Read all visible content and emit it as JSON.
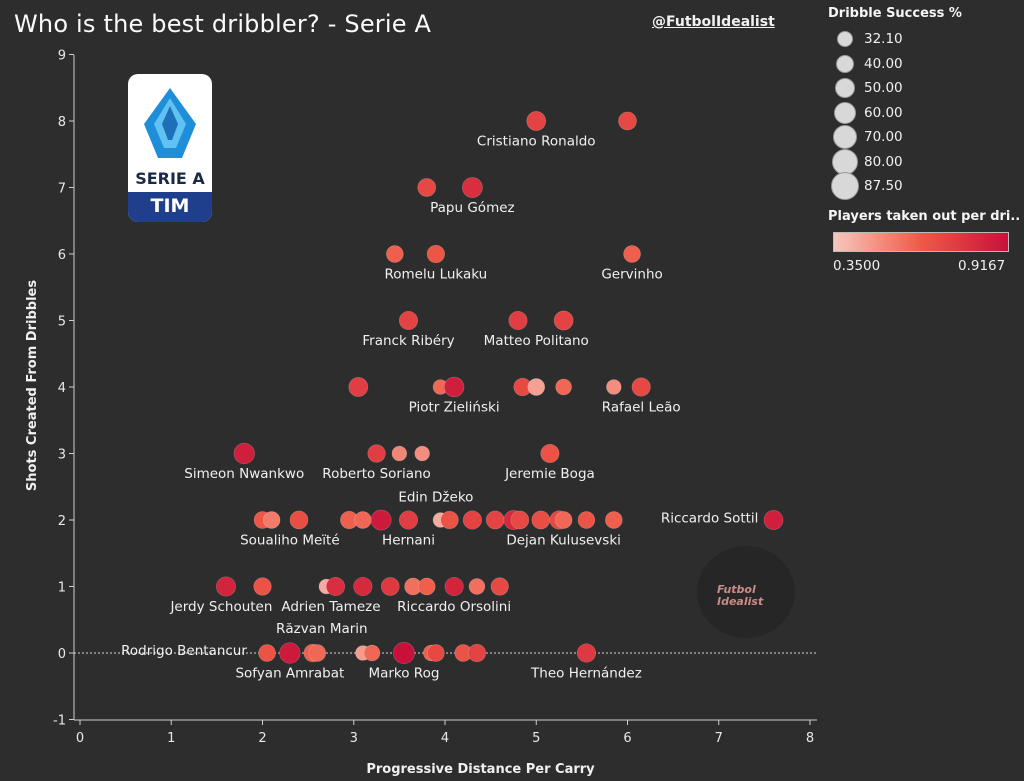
{
  "title": "Who is the best dribbler? - Serie A",
  "handle": "@FutbolIdealist",
  "logo": {
    "line1": "SERIE A",
    "line2": "TIM"
  },
  "watermark": {
    "text": "Futbol Idealist"
  },
  "legend_size": {
    "title": "Dribble Success %",
    "values": [
      "32.10",
      "40.00",
      "50.00",
      "60.00",
      "70.00",
      "80.00",
      "87.50"
    ]
  },
  "legend_color": {
    "title": "Players taken out per dri..",
    "min_label": "0.3500",
    "max_label": "0.9167",
    "min": 0.35,
    "max": 0.9167,
    "colors": [
      "#f7c7bd",
      "#ef5a47",
      "#c8103a"
    ]
  },
  "chart_data": {
    "type": "scatter",
    "title": "Who is the best dribbler? - Serie A",
    "xlabel": "Progressive Distance Per Carry",
    "ylabel": "Shots Created From Dribbles",
    "xlim": [
      0,
      8
    ],
    "ylim": [
      -1,
      9
    ],
    "xticks": [
      "0",
      "1",
      "2",
      "3",
      "4",
      "5",
      "6",
      "7",
      "8"
    ],
    "yticks": [
      "-1",
      "0",
      "1",
      "2",
      "3",
      "4",
      "5",
      "6",
      "7",
      "8",
      "9"
    ],
    "reference_line_y": 0,
    "points": [
      {
        "x": 5.0,
        "y": 8,
        "c": 0.72,
        "s": 65
      },
      {
        "x": 6.0,
        "y": 8,
        "c": 0.7,
        "s": 60
      },
      {
        "x": 3.8,
        "y": 7,
        "c": 0.7,
        "s": 60
      },
      {
        "x": 4.3,
        "y": 7,
        "c": 0.8,
        "s": 70
      },
      {
        "x": 3.45,
        "y": 6,
        "c": 0.62,
        "s": 55
      },
      {
        "x": 3.9,
        "y": 6,
        "c": 0.65,
        "s": 58
      },
      {
        "x": 6.05,
        "y": 6,
        "c": 0.62,
        "s": 55
      },
      {
        "x": 3.6,
        "y": 5,
        "c": 0.72,
        "s": 62
      },
      {
        "x": 4.8,
        "y": 5,
        "c": 0.74,
        "s": 62
      },
      {
        "x": 5.3,
        "y": 5,
        "c": 0.72,
        "s": 65
      },
      {
        "x": 3.05,
        "y": 4,
        "c": 0.74,
        "s": 65
      },
      {
        "x": 3.95,
        "y": 4,
        "c": 0.6,
        "s": 45
      },
      {
        "x": 4.1,
        "y": 4,
        "c": 0.86,
        "s": 68
      },
      {
        "x": 4.85,
        "y": 4,
        "c": 0.7,
        "s": 58
      },
      {
        "x": 5.0,
        "y": 4,
        "c": 0.45,
        "s": 55
      },
      {
        "x": 5.3,
        "y": 4,
        "c": 0.6,
        "s": 50
      },
      {
        "x": 5.85,
        "y": 4,
        "c": 0.5,
        "s": 45
      },
      {
        "x": 6.15,
        "y": 4,
        "c": 0.7,
        "s": 62
      },
      {
        "x": 1.8,
        "y": 3,
        "c": 0.86,
        "s": 72
      },
      {
        "x": 3.25,
        "y": 3,
        "c": 0.74,
        "s": 58
      },
      {
        "x": 3.5,
        "y": 3,
        "c": 0.52,
        "s": 45
      },
      {
        "x": 3.75,
        "y": 3,
        "c": 0.5,
        "s": 45
      },
      {
        "x": 5.15,
        "y": 3,
        "c": 0.66,
        "s": 62
      },
      {
        "x": 2.0,
        "y": 2,
        "c": 0.65,
        "s": 55
      },
      {
        "x": 2.1,
        "y": 2,
        "c": 0.55,
        "s": 55
      },
      {
        "x": 2.4,
        "y": 2,
        "c": 0.68,
        "s": 60
      },
      {
        "x": 2.95,
        "y": 2,
        "c": 0.62,
        "s": 58
      },
      {
        "x": 3.1,
        "y": 2,
        "c": 0.6,
        "s": 55
      },
      {
        "x": 3.3,
        "y": 2,
        "c": 0.88,
        "s": 70
      },
      {
        "x": 3.6,
        "y": 2,
        "c": 0.74,
        "s": 62
      },
      {
        "x": 3.95,
        "y": 2,
        "c": 0.42,
        "s": 45
      },
      {
        "x": 4.05,
        "y": 2,
        "c": 0.66,
        "s": 58
      },
      {
        "x": 4.3,
        "y": 2,
        "c": 0.72,
        "s": 62
      },
      {
        "x": 4.55,
        "y": 2,
        "c": 0.72,
        "s": 60
      },
      {
        "x": 4.75,
        "y": 2,
        "c": 0.82,
        "s": 65
      },
      {
        "x": 4.82,
        "y": 2,
        "c": 0.7,
        "s": 60
      },
      {
        "x": 5.05,
        "y": 2,
        "c": 0.68,
        "s": 60
      },
      {
        "x": 5.25,
        "y": 2,
        "c": 0.7,
        "s": 62
      },
      {
        "x": 5.3,
        "y": 2,
        "c": 0.6,
        "s": 55
      },
      {
        "x": 5.55,
        "y": 2,
        "c": 0.66,
        "s": 55
      },
      {
        "x": 5.85,
        "y": 2,
        "c": 0.62,
        "s": 55
      },
      {
        "x": 7.6,
        "y": 2,
        "c": 0.86,
        "s": 65
      },
      {
        "x": 1.6,
        "y": 1,
        "c": 0.84,
        "s": 66
      },
      {
        "x": 2.0,
        "y": 1,
        "c": 0.66,
        "s": 58
      },
      {
        "x": 2.7,
        "y": 1,
        "c": 0.42,
        "s": 45
      },
      {
        "x": 2.8,
        "y": 1,
        "c": 0.8,
        "s": 62
      },
      {
        "x": 3.1,
        "y": 1,
        "c": 0.82,
        "s": 62
      },
      {
        "x": 3.4,
        "y": 1,
        "c": 0.76,
        "s": 60
      },
      {
        "x": 3.65,
        "y": 1,
        "c": 0.58,
        "s": 55
      },
      {
        "x": 3.8,
        "y": 1,
        "c": 0.62,
        "s": 55
      },
      {
        "x": 4.1,
        "y": 1,
        "c": 0.84,
        "s": 62
      },
      {
        "x": 4.35,
        "y": 1,
        "c": 0.58,
        "s": 50
      },
      {
        "x": 4.6,
        "y": 1,
        "c": 0.7,
        "s": 58
      },
      {
        "x": 2.05,
        "y": 0,
        "c": 0.66,
        "s": 55
      },
      {
        "x": 2.3,
        "y": 0,
        "c": 0.88,
        "s": 72
      },
      {
        "x": 2.55,
        "y": 0,
        "c": 0.62,
        "s": 58
      },
      {
        "x": 2.6,
        "y": 0,
        "c": 0.6,
        "s": 55
      },
      {
        "x": 3.1,
        "y": 0,
        "c": 0.46,
        "s": 45
      },
      {
        "x": 3.2,
        "y": 0,
        "c": 0.6,
        "s": 50
      },
      {
        "x": 3.55,
        "y": 0,
        "c": 0.92,
        "s": 75
      },
      {
        "x": 3.85,
        "y": 0,
        "c": 0.62,
        "s": 50
      },
      {
        "x": 3.9,
        "y": 0,
        "c": 0.7,
        "s": 55
      },
      {
        "x": 4.2,
        "y": 0,
        "c": 0.66,
        "s": 55
      },
      {
        "x": 4.35,
        "y": 0,
        "c": 0.72,
        "s": 58
      },
      {
        "x": 5.55,
        "y": 0,
        "c": 0.76,
        "s": 62
      }
    ],
    "labels": [
      {
        "text": "Cristiano Ronaldo",
        "x": 5.0,
        "y": 7.63
      },
      {
        "text": "Papu Gómez",
        "x": 4.3,
        "y": 6.63
      },
      {
        "text": "Romelu Lukaku",
        "x": 3.9,
        "y": 5.63
      },
      {
        "text": "Gervinho",
        "x": 6.05,
        "y": 5.63
      },
      {
        "text": "Franck Ribéry",
        "x": 3.6,
        "y": 4.63
      },
      {
        "text": "Matteo Politano",
        "x": 5.0,
        "y": 4.63
      },
      {
        "text": "Piotr Zieliński",
        "x": 4.1,
        "y": 3.63
      },
      {
        "text": "Rafael Leão",
        "x": 6.15,
        "y": 3.63
      },
      {
        "text": "Simeon Nwankwo",
        "x": 1.8,
        "y": 2.63
      },
      {
        "text": "Roberto Soriano",
        "x": 3.25,
        "y": 2.63
      },
      {
        "text": "Jeremie Boga",
        "x": 5.15,
        "y": 2.63
      },
      {
        "text": "Edin Džeko",
        "x": 3.9,
        "y": 2.28
      },
      {
        "text": "Riccardo Sottil",
        "x": 6.9,
        "y": 1.96
      },
      {
        "text": "Soualiho Meïté",
        "x": 2.3,
        "y": 1.63
      },
      {
        "text": "Hernani",
        "x": 3.6,
        "y": 1.63
      },
      {
        "text": "Dejan Kulusevski",
        "x": 5.3,
        "y": 1.63
      },
      {
        "text": "Jerdy Schouten",
        "x": 1.55,
        "y": 0.63
      },
      {
        "text": "Adrien Tameze",
        "x": 2.75,
        "y": 0.63
      },
      {
        "text": "Riccardo Orsolini",
        "x": 4.1,
        "y": 0.63
      },
      {
        "text": "Răzvan Marin",
        "x": 2.65,
        "y": 0.3
      },
      {
        "text": "Rodrigo Bentancur",
        "x": 1.14,
        "y": -0.03
      },
      {
        "text": "Sofyan Amrabat",
        "x": 2.3,
        "y": -0.37
      },
      {
        "text": "Marko Rog",
        "x": 3.55,
        "y": -0.37
      },
      {
        "text": "Theo Hernández",
        "x": 5.55,
        "y": -0.37
      }
    ]
  }
}
